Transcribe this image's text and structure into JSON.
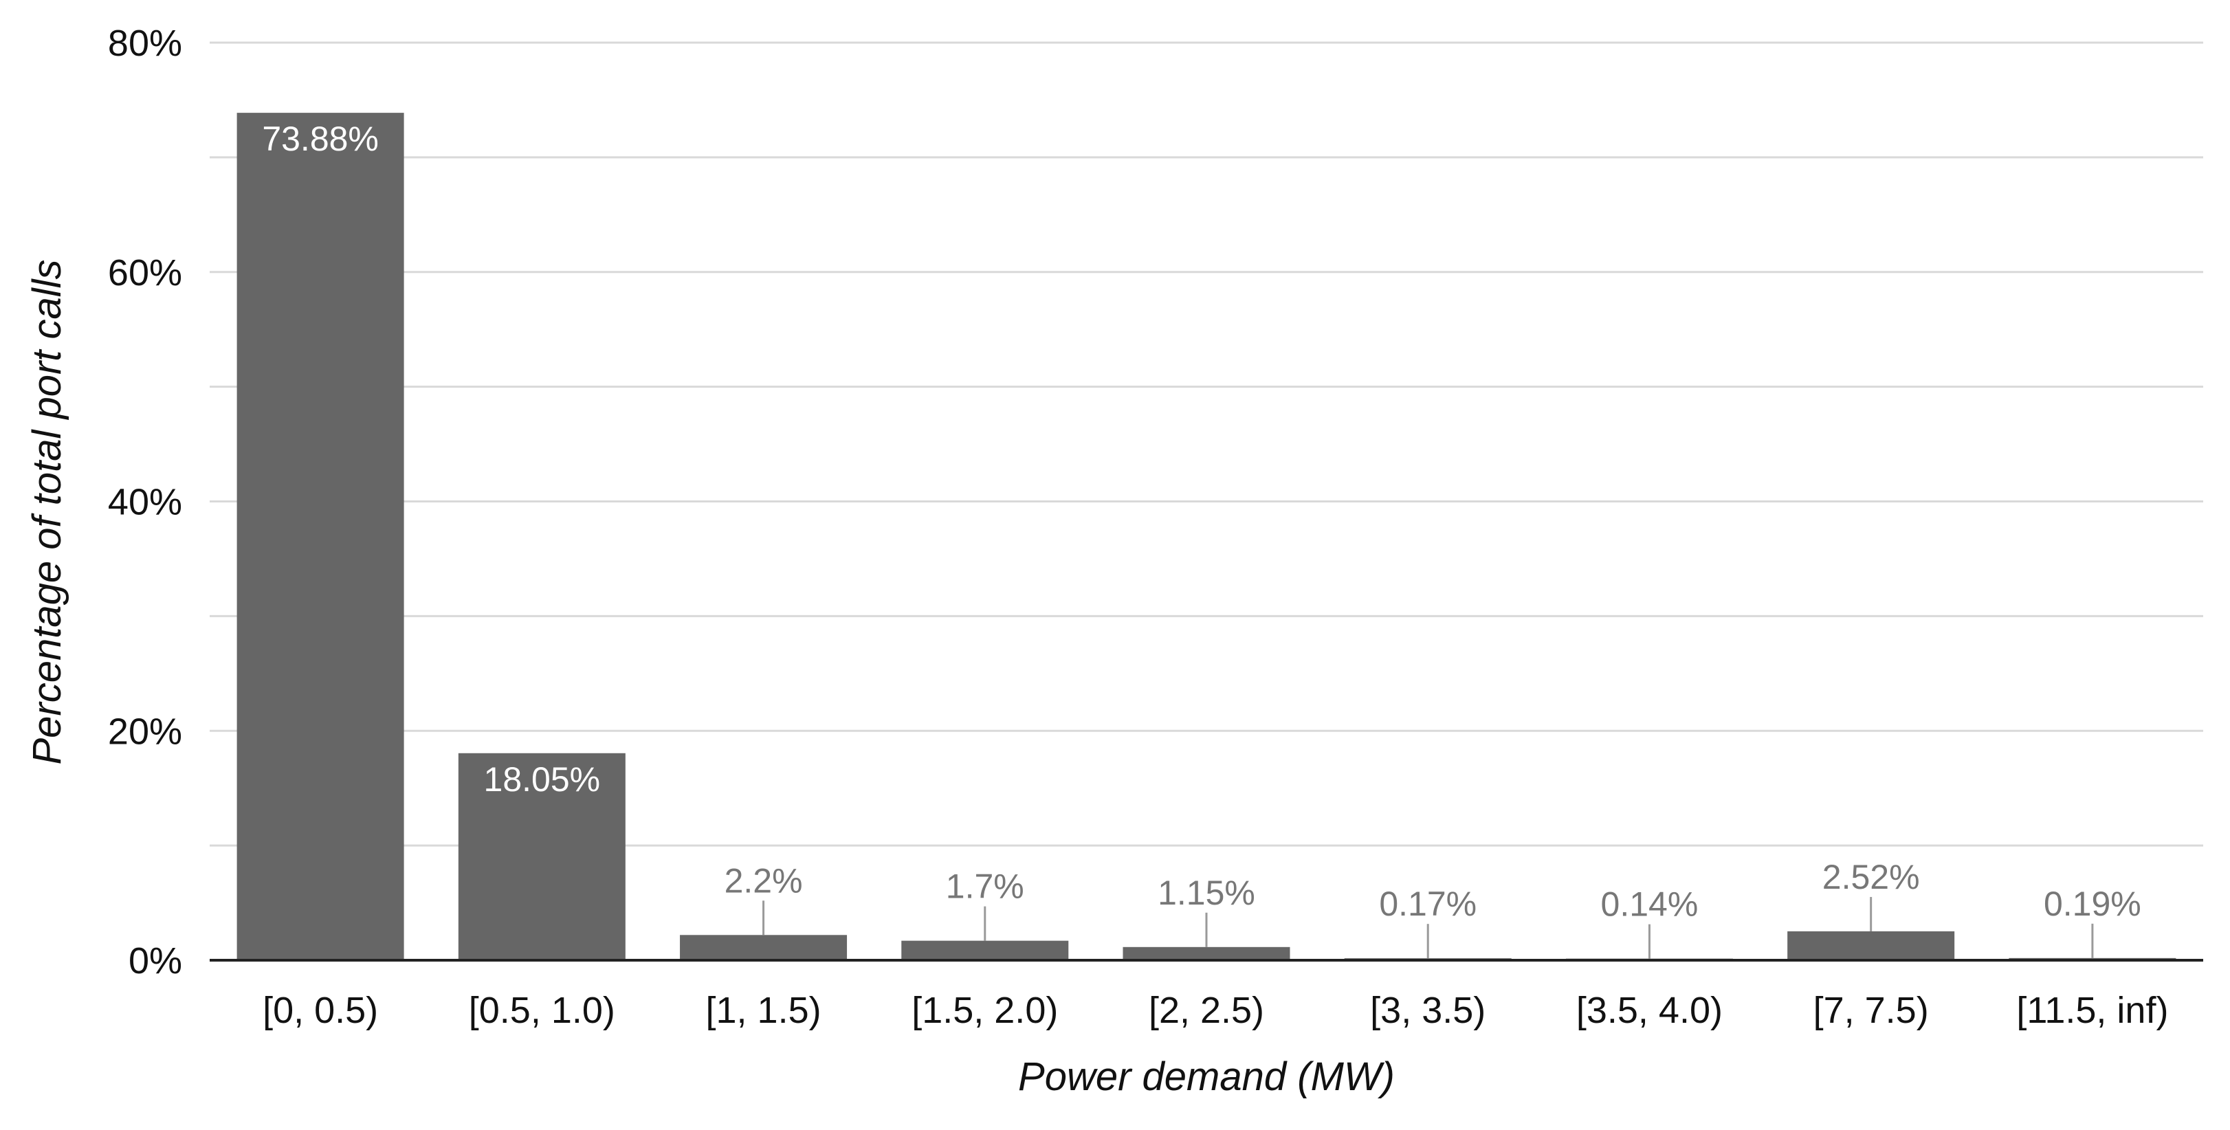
{
  "chart_data": {
    "type": "bar",
    "title": "",
    "xlabel": "Power demand (MW)",
    "ylabel": "Percentage of total port calls",
    "ylim": [
      0,
      80
    ],
    "yticks": [
      0,
      20,
      40,
      60,
      80
    ],
    "ytick_labels": [
      "0%",
      "20%",
      "40%",
      "60%",
      "80%"
    ],
    "minor_gridlines": [
      10,
      30,
      50,
      70
    ],
    "grid": true,
    "legend": "none",
    "bar_color": "#666666",
    "categories": [
      "[0, 0.5)",
      "[0.5, 1.0)",
      "[1, 1.5)",
      "[1.5, 2.0)",
      "[2, 2.5)",
      "[3, 3.5)",
      "[3.5, 4.0)",
      "[7, 7.5)",
      "[11.5, inf)"
    ],
    "values": [
      73.88,
      18.05,
      2.2,
      1.7,
      1.15,
      0.17,
      0.14,
      2.52,
      0.19
    ],
    "data_labels": [
      "73.88%",
      "18.05%",
      "2.2%",
      "1.7%",
      "1.15%",
      "0.17%",
      "0.14%",
      "2.52%",
      "0.19%"
    ]
  }
}
